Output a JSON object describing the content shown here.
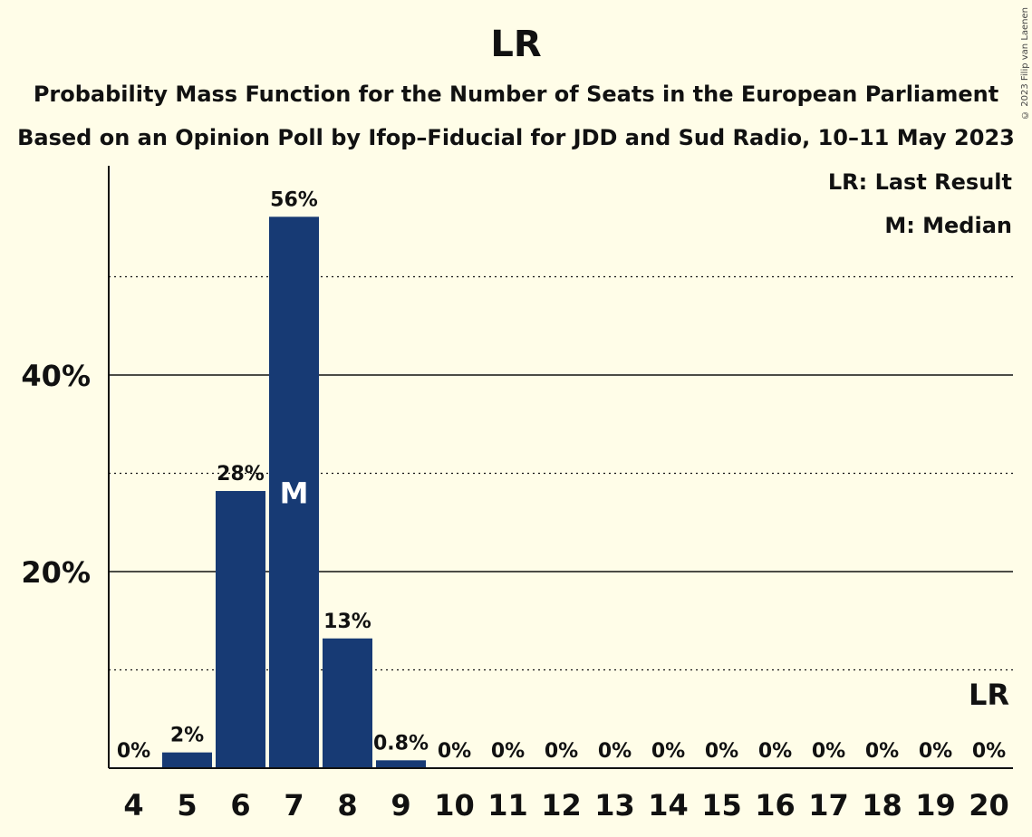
{
  "chart_data": {
    "type": "bar",
    "title": "LR",
    "subtitle": "Probability Mass Function for the Number of Seats in the European Parliament",
    "subtitle2": "Based on an Opinion Poll by Ifop–Fiducial for JDD and Sud Radio, 10–11 May 2023",
    "copyright": "© 2023 Filip van Laenen",
    "categories": [
      "4",
      "5",
      "6",
      "7",
      "8",
      "9",
      "10",
      "11",
      "12",
      "13",
      "14",
      "15",
      "16",
      "17",
      "18",
      "19",
      "20"
    ],
    "values": [
      0,
      1.6,
      28.2,
      56.1,
      13.2,
      0.8,
      0,
      0,
      0,
      0,
      0,
      0,
      0,
      0,
      0,
      0,
      0
    ],
    "data_labels": [
      "0%",
      "2%",
      "28%",
      "56%",
      "13%",
      "0.8%",
      "0%",
      "0%",
      "0%",
      "0%",
      "0%",
      "0%",
      "0%",
      "0%",
      "0%",
      "0%",
      "0%"
    ],
    "ylim": [
      0,
      61
    ],
    "yticks": [
      {
        "value": 20,
        "label": "20%"
      },
      {
        "value": 40,
        "label": "40%"
      }
    ],
    "minor_gridlines": [
      10,
      30,
      50
    ],
    "bar_color": "#173A74",
    "median": {
      "category": "7",
      "label": "M"
    },
    "last_result": {
      "category": "20",
      "label": "LR"
    },
    "legend": [
      "LR: Last Result",
      "M: Median"
    ],
    "legend_position": "top-right"
  }
}
